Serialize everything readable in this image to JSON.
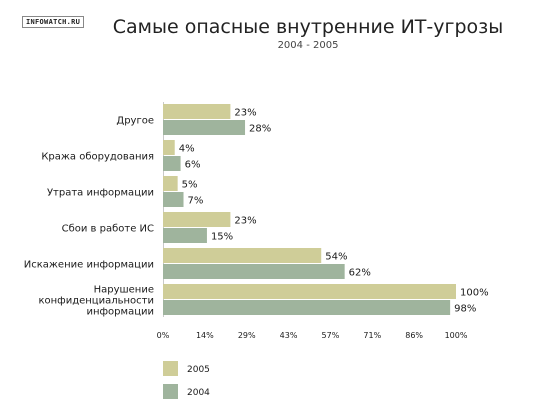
{
  "watermark": "INFOWATCH.RU",
  "chart_data": {
    "type": "bar",
    "orientation": "horizontal",
    "title": "Самые опасные внутренние ИТ-угрозы",
    "subtitle": "2004 - 2005",
    "categories": [
      [
        "Другое"
      ],
      [
        "Кража оборудования"
      ],
      [
        "Утрата информации"
      ],
      [
        "Сбои в работе ИС"
      ],
      [
        "Искажение информации"
      ],
      [
        "Нарушение",
        "конфиденциальности",
        "информации"
      ]
    ],
    "series": [
      {
        "name": "2005",
        "color": "#cfcd98",
        "values": [
          23,
          4,
          5,
          23,
          54,
          100
        ],
        "labels": [
          "23%",
          "4%",
          "5%",
          "23%",
          "54%",
          "100%"
        ]
      },
      {
        "name": "2004",
        "color": "#9fb49d",
        "values": [
          28,
          6,
          7,
          15,
          62,
          98
        ],
        "labels": [
          "28%",
          "6%",
          "7%",
          "15%",
          "62%",
          "98%"
        ]
      }
    ],
    "xlim": [
      0,
      100
    ],
    "ticks": [
      0,
      14.2857,
      28.5714,
      42.8571,
      57.1429,
      71.4286,
      85.7143,
      100
    ],
    "tick_labels": [
      "0%",
      "14%",
      "29%",
      "43%",
      "57%",
      "71%",
      "86%",
      "100%"
    ],
    "legend": "bottom-left",
    "grid": false
  }
}
